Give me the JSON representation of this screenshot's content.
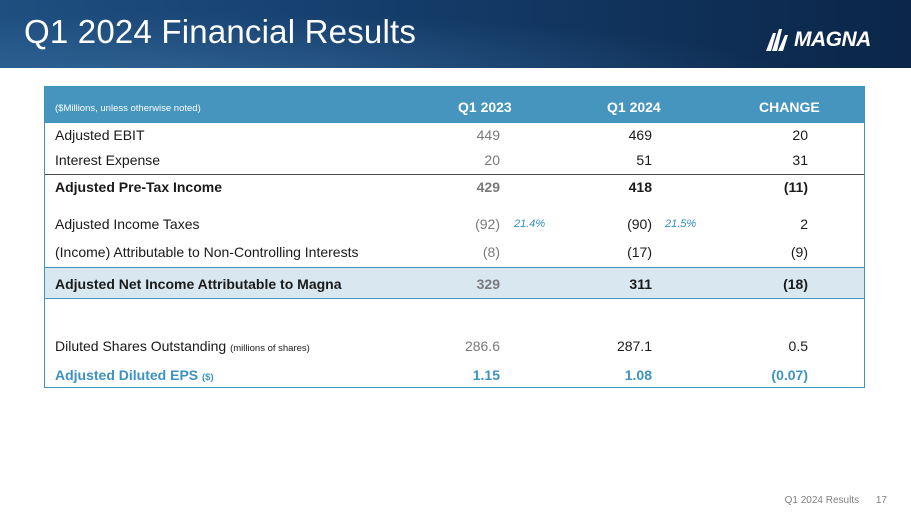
{
  "header": {
    "title": "Q1 2024 Financial Results",
    "logo_text": "MAGNA"
  },
  "table": {
    "units_label": "($Millions, unless otherwise noted)",
    "columns": [
      "Q1 2023",
      "Q1 2024",
      "CHANGE"
    ],
    "rows": [
      {
        "label": "Adjusted EBIT",
        "q1_2023": "449",
        "q1_2024": "469",
        "change": "20"
      },
      {
        "label": "Interest Expense",
        "q1_2023": "20",
        "q1_2024": "51",
        "change": "31"
      },
      {
        "label": "Adjusted Pre-Tax Income",
        "q1_2023": "429",
        "q1_2024": "418",
        "change": "(11)"
      },
      {
        "label": "Adjusted Income Taxes",
        "q1_2023": "(92)",
        "q1_2023_rate": "21.4%",
        "q1_2024": "(90)",
        "q1_2024_rate": "21.5%",
        "change": "2"
      },
      {
        "label": "(Income) Attributable to Non-Controlling Interests",
        "q1_2023": "(8)",
        "q1_2024": "(17)",
        "change": "(9)"
      },
      {
        "label": "Adjusted Net Income Attributable to Magna",
        "q1_2023": "329",
        "q1_2024": "311",
        "change": "(18)"
      },
      {
        "label": "Diluted Shares Outstanding",
        "label_note": "(millions of shares)",
        "q1_2023": "286.6",
        "q1_2024": "287.1",
        "change": "0.5"
      },
      {
        "label": "Adjusted Diluted EPS",
        "label_note": "($)",
        "q1_2023": "1.15",
        "q1_2024": "1.08",
        "change": "(0.07)"
      }
    ]
  },
  "footer": {
    "label": "Q1 2024 Results",
    "page_number": "17"
  },
  "colors": {
    "header_bg": "#153e6c",
    "table_header_bg": "#4595be",
    "highlight_band": "#d9e8f0",
    "accent_text": "#3d93c0"
  }
}
